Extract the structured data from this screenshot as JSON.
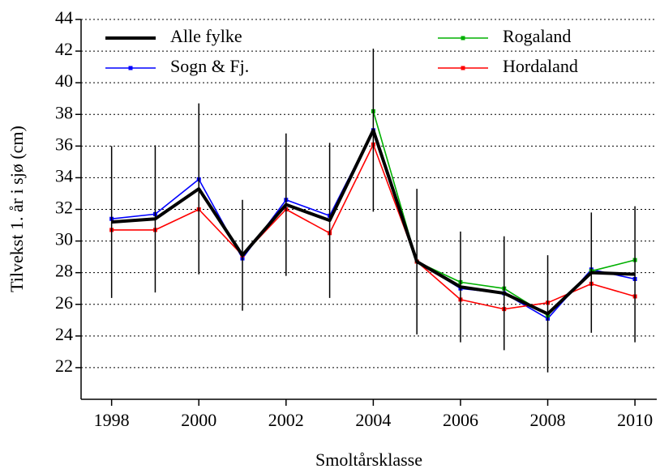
{
  "chart_data": {
    "type": "line",
    "x_label": "Smoltårsklasse",
    "y_label": "Tilvekst 1. år i sjø (cm)",
    "x": [
      1998,
      1999,
      2000,
      2001,
      2002,
      2003,
      2004,
      2005,
      2006,
      2007,
      2008,
      2009,
      2010
    ],
    "series": [
      {
        "name": "Alle fylke",
        "color": "#000000",
        "width": 4,
        "markers": false,
        "values": [
          31.2,
          31.4,
          33.3,
          29.1,
          32.3,
          31.3,
          37.0,
          28.7,
          27.1,
          26.7,
          25.4,
          28.0,
          27.9
        ],
        "error": [
          4.8,
          4.65,
          5.4,
          3.5,
          4.5,
          4.9,
          5.15,
          4.6,
          3.5,
          3.6,
          3.7,
          3.8,
          4.3
        ]
      },
      {
        "name": "Sogn & Fj.",
        "color": "#0000ff",
        "width": 1.6,
        "markers": true,
        "values": [
          31.4,
          31.7,
          33.9,
          28.9,
          32.6,
          31.6,
          37.0,
          28.7,
          27.0,
          26.7,
          25.1,
          28.2,
          27.6
        ]
      },
      {
        "name": "Rogaland",
        "color": "#00b000",
        "width": 1.6,
        "markers": true,
        "values": [
          null,
          null,
          null,
          null,
          null,
          null,
          38.2,
          28.7,
          27.4,
          27.0,
          25.3,
          28.1,
          28.8
        ]
      },
      {
        "name": "Hordaland",
        "color": "#ff0000",
        "width": 1.6,
        "markers": true,
        "values": [
          30.7,
          30.7,
          32.0,
          29.1,
          32.0,
          30.5,
          36.1,
          28.7,
          26.3,
          25.7,
          26.1,
          27.3,
          26.5
        ]
      }
    ],
    "xlim": [
      1997.3,
      2010.5
    ],
    "xticks": [
      1998,
      2000,
      2002,
      2004,
      2006,
      2008,
      2010
    ],
    "ylim": [
      20,
      44
    ],
    "yticks": [
      22,
      24,
      26,
      28,
      30,
      32,
      34,
      36,
      38,
      40,
      42,
      44
    ],
    "grid": true
  }
}
